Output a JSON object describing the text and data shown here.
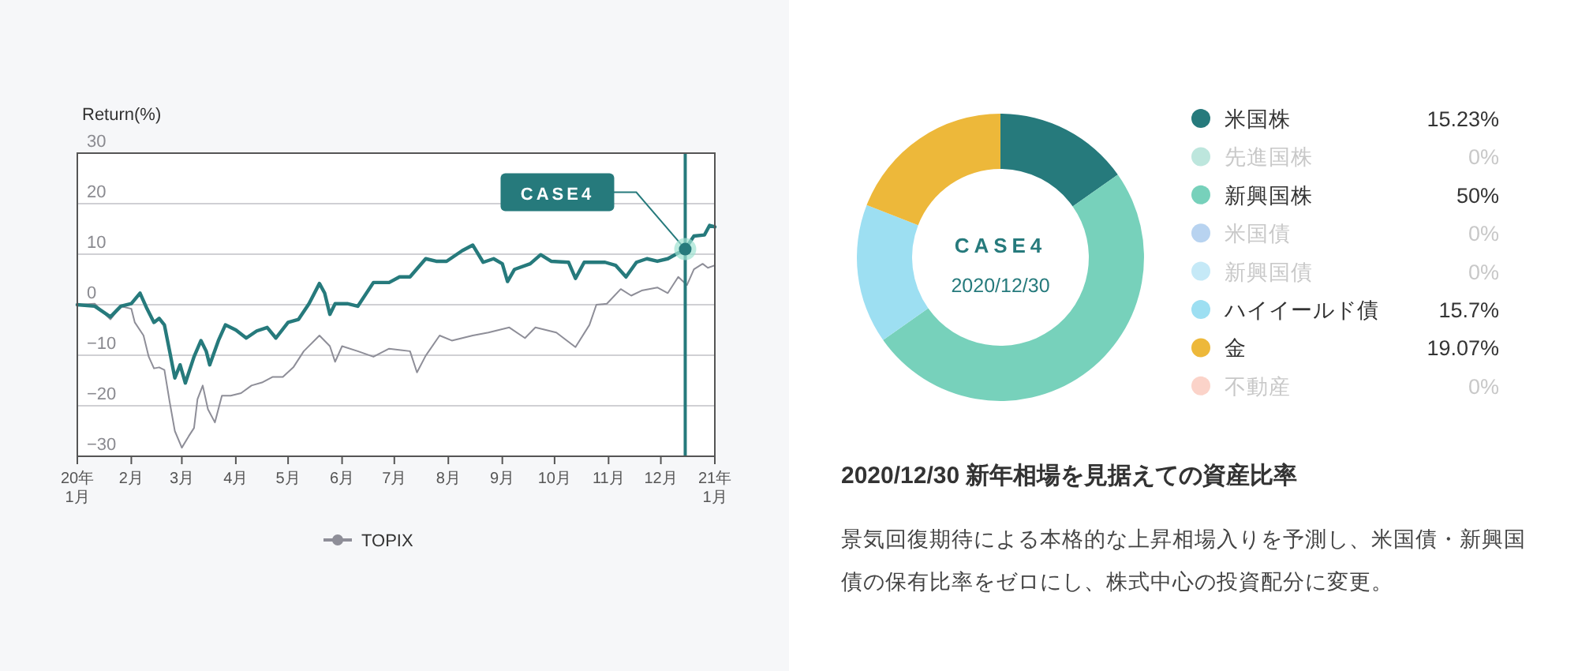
{
  "chart_data": [
    {
      "type": "line",
      "ylabel": "Return(%)",
      "xlim": [
        "2020-01-01",
        "2021-01-01"
      ],
      "ylim": [
        -30,
        30
      ],
      "yticks": [
        -30,
        -20,
        -10,
        0,
        10,
        20,
        30
      ],
      "xticks": [
        {
          "value": "2020-01-01",
          "label": "20年\n1月"
        },
        {
          "value": "2020-02-01",
          "label": "2月"
        },
        {
          "value": "2020-03-01",
          "label": "3月"
        },
        {
          "value": "2020-04-01",
          "label": "4月"
        },
        {
          "value": "2020-05-01",
          "label": "5月"
        },
        {
          "value": "2020-06-01",
          "label": "6月"
        },
        {
          "value": "2020-07-01",
          "label": "7月"
        },
        {
          "value": "2020-08-01",
          "label": "8月"
        },
        {
          "value": "2020-09-01",
          "label": "9月"
        },
        {
          "value": "2020-10-01",
          "label": "10月"
        },
        {
          "value": "2020-11-01",
          "label": "11月"
        },
        {
          "value": "2020-12-01",
          "label": "12月"
        },
        {
          "value": "2021-01-01",
          "label": "21年\n1月"
        }
      ],
      "grid": "y",
      "legend": "bottom",
      "series": [
        {
          "color": "#267a7c",
          "x": [
            "2020-01-01",
            "2020-01-11",
            "2020-01-20",
            "2020-01-26",
            "2020-02-01",
            "2020-02-06",
            "2020-02-10",
            "2020-02-14",
            "2020-02-17",
            "2020-02-20",
            "2020-02-23",
            "2020-02-26",
            "2020-02-29",
            "2020-03-03",
            "2020-03-08",
            "2020-03-12",
            "2020-03-15",
            "2020-03-17",
            "2020-03-22",
            "2020-03-26",
            "2020-04-01",
            "2020-04-07",
            "2020-04-13",
            "2020-04-19",
            "2020-04-24",
            "2020-05-01",
            "2020-05-07",
            "2020-05-13",
            "2020-05-19",
            "2020-05-22",
            "2020-05-25",
            "2020-05-28",
            "2020-06-04",
            "2020-06-10",
            "2020-06-19",
            "2020-06-28",
            "2020-07-04",
            "2020-07-10",
            "2020-07-19",
            "2020-07-25",
            "2020-07-31",
            "2020-08-09",
            "2020-08-15",
            "2020-08-21",
            "2020-08-27",
            "2020-09-01",
            "2020-09-04",
            "2020-09-08",
            "2020-09-17",
            "2020-09-23",
            "2020-09-29",
            "2020-10-09",
            "2020-10-13",
            "2020-10-18",
            "2020-10-30",
            "2020-11-05",
            "2020-11-11",
            "2020-11-17",
            "2020-11-23",
            "2020-11-29",
            "2020-12-05",
            "2020-12-15",
            "2020-12-20",
            "2020-12-26",
            "2020-12-29",
            "2021-01-01"
          ],
          "values": [
            0,
            -0.3,
            -2.4,
            -0.3,
            0.2,
            2.3,
            -0.8,
            -3.5,
            -2.7,
            -4,
            -9.2,
            -14.5,
            -11.9,
            -15.5,
            -10.3,
            -7.1,
            -9.2,
            -11.9,
            -7.1,
            -4,
            -5,
            -6.6,
            -5.2,
            -4.5,
            -6.6,
            -3.5,
            -2.9,
            0.2,
            4.2,
            2.3,
            -1.9,
            0.2,
            0.2,
            -0.3,
            4.4,
            4.4,
            5.5,
            5.5,
            9.1,
            8.6,
            8.6,
            10.7,
            11.8,
            8.4,
            9.1,
            8.1,
            4.6,
            7,
            8.1,
            9.9,
            8.6,
            8.4,
            5.2,
            8.4,
            8.4,
            7.8,
            5.5,
            8.4,
            9.1,
            8.6,
            9.1,
            11,
            13.6,
            13.8,
            15.7,
            15.4
          ]
        },
        {
          "name": "TOPIX",
          "color": "#8e8e98",
          "x": [
            "2020-01-01",
            "2020-01-11",
            "2020-01-20",
            "2020-01-26",
            "2020-02-01",
            "2020-02-03",
            "2020-02-08",
            "2020-02-11",
            "2020-02-14",
            "2020-02-17",
            "2020-02-20",
            "2020-02-23",
            "2020-02-26",
            "2020-03-01",
            "2020-03-05",
            "2020-03-08",
            "2020-03-10",
            "2020-03-13",
            "2020-03-16",
            "2020-03-20",
            "2020-03-24",
            "2020-03-29",
            "2020-04-04",
            "2020-04-10",
            "2020-04-16",
            "2020-04-22",
            "2020-04-28",
            "2020-05-04",
            "2020-05-10",
            "2020-05-19",
            "2020-05-25",
            "2020-05-28",
            "2020-06-01",
            "2020-06-10",
            "2020-06-19",
            "2020-06-28",
            "2020-07-10",
            "2020-07-14",
            "2020-07-19",
            "2020-07-27",
            "2020-08-03",
            "2020-08-15",
            "2020-08-24",
            "2020-09-05",
            "2020-09-14",
            "2020-09-20",
            "2020-10-02",
            "2020-10-13",
            "2020-10-21",
            "2020-10-25",
            "2020-10-31",
            "2020-11-08",
            "2020-11-14",
            "2020-11-20",
            "2020-11-29",
            "2020-12-05",
            "2020-12-11",
            "2020-12-16",
            "2020-12-20",
            "2020-12-25",
            "2020-12-28",
            "2021-01-01"
          ],
          "values": [
            0,
            0.2,
            -2.9,
            -0.3,
            -0.8,
            -3.5,
            -6.1,
            -10.3,
            -12.6,
            -12.4,
            -12.9,
            -19.2,
            -25,
            -28.3,
            -26,
            -24.4,
            -18.7,
            -16,
            -20.7,
            -23.3,
            -18,
            -18,
            -17.5,
            -16,
            -15.4,
            -14.3,
            -14.3,
            -12.4,
            -9.2,
            -6.1,
            -8.2,
            -11.3,
            -8.2,
            -9.2,
            -10.3,
            -8.7,
            -9.2,
            -13.4,
            -10.1,
            -6.1,
            -7.1,
            -6.1,
            -5.5,
            -4.5,
            -6.6,
            -4.5,
            -5.5,
            -8.4,
            -4,
            0,
            0.2,
            3.1,
            1.8,
            2.8,
            3.4,
            2.3,
            5.5,
            3.9,
            7,
            8.1,
            7.3,
            7.8
          ]
        }
      ],
      "ref_lines": [
        {
          "axis": "x",
          "value": "2020-12-15",
          "color": "#267a7c"
        }
      ],
      "annotations": [
        {
          "text": "CASE4",
          "x": "2020-12-15",
          "y": 11
        }
      ]
    },
    {
      "type": "donut",
      "title": "2020/12/30 新年相場を見据えての資産比率",
      "legend": "right",
      "categories": [
        "米国株",
        "先進国株",
        "新興国株",
        "米国債",
        "新興国債",
        "ハイイールド債",
        "金",
        "不動産"
      ],
      "values": [
        15.23,
        0,
        50,
        0,
        0,
        15.7,
        19.07,
        0
      ],
      "value_labels": [
        "15.23%",
        "0%",
        "50%",
        "0%",
        "0%",
        "15.7%",
        "19.07%",
        "0%"
      ],
      "colors": [
        "#267a7c",
        "#bde6dd",
        "#77d1bb",
        "#b8d3f0",
        "#c5e9f7",
        "#9ddff2",
        "#edb83a",
        "#fbd3c9"
      ],
      "annotations": [
        "CASE4",
        "2020/12/30",
        "景気回復期待による本格的な上昇相場入りを予測し、米国債・新興国債の保有比率をゼロにし、株式中心の投資配分に変更。"
      ]
    }
  ]
}
